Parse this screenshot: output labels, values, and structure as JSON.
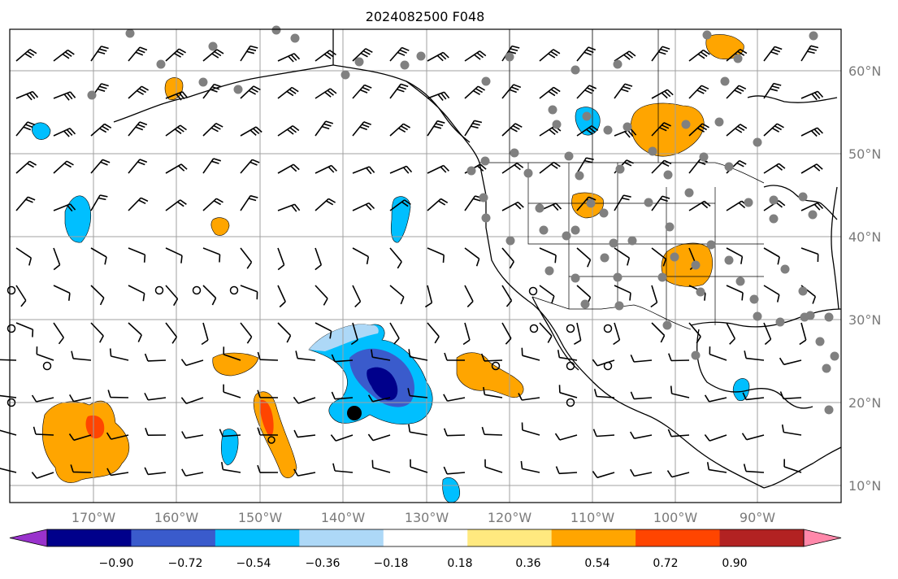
{
  "title": "2024082500 F048",
  "lat_labels": [
    "60°N",
    "50°N",
    "40°N",
    "30°N",
    "20°N",
    "10°N"
  ],
  "lon_labels": [
    "170°W",
    "160°W",
    "150°W",
    "140°W",
    "130°W",
    "120°W",
    "110°W",
    "100°W",
    "90°W"
  ],
  "colorbar": {
    "tick_labels": [
      "−0.90",
      "−0.72",
      "−0.54",
      "−0.36",
      "−0.18",
      "0.18",
      "0.36",
      "0.54",
      "0.72",
      "0.90"
    ],
    "colors": [
      "#9932cc",
      "#00008b",
      "#3a5bcc",
      "#00bfff",
      "#add8f7",
      "#ffffff",
      "#ffe97f",
      "#ffa500",
      "#ff4500",
      "#b22222",
      "#ff88aa"
    ]
  },
  "map_colors": {
    "background": "#ffffff",
    "gridlines": "#a0a0a0",
    "coastline": "#000000",
    "station_marker": "#808080"
  }
}
